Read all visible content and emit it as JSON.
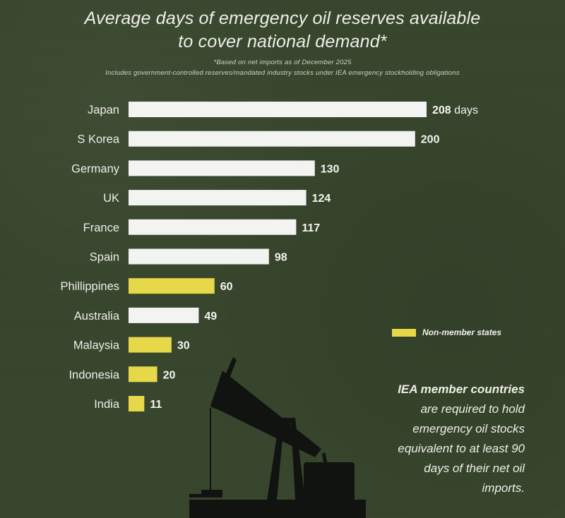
{
  "title": {
    "line1": "Average days of emergency oil reserves available",
    "line2": "to cover national demand*"
  },
  "notes": {
    "line1": "*Based on net imports as of December 2025",
    "line2": "Includes government-controlled reserves/mandated industry stocks under IEA emergency stockholding obligations"
  },
  "legend": {
    "label": "Non-member states",
    "color": "#e7d84a"
  },
  "annotation": {
    "bold": "IEA member countries",
    "lines": [
      "are required to hold",
      "emergency oil stocks",
      "equivalent to at least 90",
      "days of their net oil",
      "imports."
    ]
  },
  "chart_data": {
    "type": "bar",
    "orientation": "horizontal",
    "categories": [
      "Japan",
      "S Korea",
      "Germany",
      "UK",
      "France",
      "Spain",
      "Phillippines",
      "Australia",
      "Malaysia",
      "Indonesia",
      "India"
    ],
    "values": [
      208,
      200,
      130,
      124,
      117,
      98,
      60,
      49,
      30,
      20,
      11
    ],
    "value_labels": [
      "208",
      "200",
      "130",
      "124",
      "117",
      "98",
      "60",
      "49",
      "30",
      "20",
      "11"
    ],
    "first_value_suffix": " days",
    "member_status": [
      "member",
      "member",
      "member",
      "member",
      "member",
      "member",
      "non-member",
      "member",
      "non-member",
      "non-member",
      "non-member"
    ],
    "colors": {
      "member": "#f3f3f1",
      "non-member": "#e7d84a"
    },
    "xlim": [
      0,
      208
    ]
  }
}
